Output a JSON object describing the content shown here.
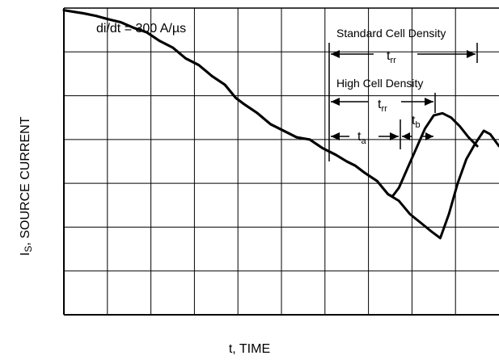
{
  "chart_data": {
    "type": "line",
    "xlabel": "t, TIME",
    "ylabel_main": "I",
    "ylabel_sub": "S",
    "ylabel_rest": ", SOURCE CURRENT",
    "grid": true,
    "x_divisions": 10,
    "y_divisions": 7,
    "series": [
      {
        "name": "Standard Cell Density",
        "x": [
          0,
          0.45,
          0.75,
          1.0,
          1.3,
          1.6,
          1.9,
          2.2,
          2.5,
          2.8,
          3.1,
          3.4,
          3.7,
          3.95,
          4.15,
          4.45,
          4.75,
          5.05,
          5.35,
          5.65,
          5.95,
          6.25,
          6.5,
          6.7,
          6.9,
          7.2,
          7.45,
          7.7,
          7.95,
          8.2,
          8.45,
          8.65,
          8.85,
          9.05,
          9.25,
          9.45,
          9.65,
          9.8,
          10.0
        ],
        "y": [
          6.95,
          6.88,
          6.82,
          6.75,
          6.68,
          6.55,
          6.45,
          6.25,
          6.1,
          5.85,
          5.7,
          5.45,
          5.25,
          4.95,
          4.8,
          4.6,
          4.35,
          4.2,
          4.05,
          4.0,
          3.8,
          3.65,
          3.5,
          3.4,
          3.25,
          3.05,
          2.75,
          2.6,
          2.3,
          2.1,
          1.9,
          1.75,
          2.3,
          3.0,
          3.55,
          3.9,
          4.2,
          4.12,
          3.85
        ]
      },
      {
        "name": "High Cell Density",
        "x": [
          0,
          0.45,
          0.75,
          1.0,
          1.3,
          1.6,
          1.9,
          2.2,
          2.5,
          2.8,
          3.1,
          3.4,
          3.7,
          3.95,
          4.15,
          4.45,
          4.75,
          5.05,
          5.35,
          5.65,
          5.95,
          6.25,
          6.5,
          6.7,
          6.9,
          7.2,
          7.45,
          7.55,
          7.7,
          7.9,
          8.1,
          8.3,
          8.5,
          8.7,
          8.9,
          9.1,
          9.3,
          9.5
        ],
        "y": [
          6.95,
          6.88,
          6.82,
          6.75,
          6.68,
          6.55,
          6.45,
          6.25,
          6.1,
          5.85,
          5.7,
          5.45,
          5.25,
          4.95,
          4.8,
          4.6,
          4.35,
          4.2,
          4.05,
          4.0,
          3.8,
          3.65,
          3.5,
          3.4,
          3.25,
          3.05,
          2.75,
          2.7,
          2.9,
          3.35,
          3.8,
          4.25,
          4.55,
          4.6,
          4.5,
          4.3,
          4.05,
          3.85
        ]
      }
    ],
    "annotations": {
      "condition": "di/dt = 300 A/µs",
      "standard": "Standard Cell Density",
      "high": "High Cell Density",
      "trr_main": "t",
      "trr_sub": "rr",
      "ta_main": "t",
      "ta_sub": "a",
      "tb_main": "t",
      "tb_sub": "b"
    }
  }
}
